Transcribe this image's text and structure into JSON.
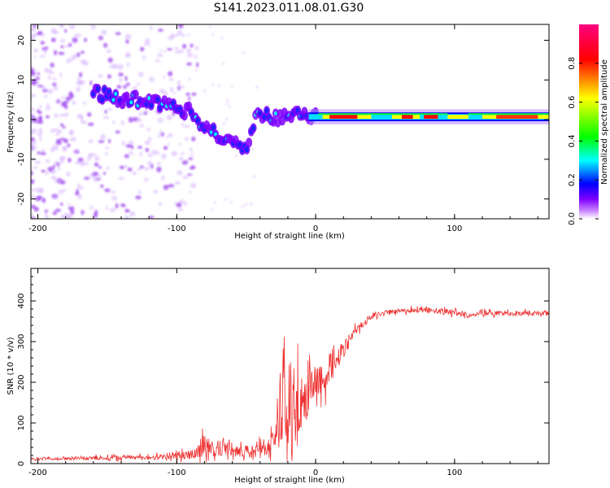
{
  "figure": {
    "title": "S141.2023.011.08.01.G30"
  },
  "chart_data": [
    {
      "type": "heatmap",
      "xlabel": "Height of straight line (km)",
      "ylabel": "Frequency (Hz)",
      "xlim": [
        -205,
        168
      ],
      "ylim": [
        -25,
        24
      ],
      "xticks": [
        -200,
        -100,
        0,
        100
      ],
      "yticks": [
        -20,
        -10,
        0,
        10,
        20
      ],
      "colorbar": {
        "label": "Normalized spectral amplitude",
        "range": [
          0,
          1
        ],
        "ticks": [
          "0.0",
          "0.2",
          "0.4",
          "0.6",
          "0.8"
        ],
        "colormap": "hsv (magenta-blue-cyan-green-yellow-red-magenta)",
        "colors": [
          "#ffffff",
          "#cc88ff",
          "#7f00ff",
          "#0000ff",
          "#00ffff",
          "#00ff00",
          "#ffff00",
          "#ff8000",
          "#ff0000",
          "#ff0080"
        ]
      },
      "ridge": {
        "x": [
          -160,
          -140,
          -120,
          -100,
          -90,
          -80,
          -70,
          -60,
          -50,
          -45,
          -40,
          -30,
          -20,
          -10,
          0,
          20,
          40,
          60,
          80,
          90,
          100,
          120,
          140,
          168
        ],
        "y": [
          7,
          5,
          5,
          3,
          2,
          -2,
          -4,
          -6,
          -8,
          -1,
          2,
          0,
          1,
          1.5,
          1,
          0.5,
          1,
          1.5,
          2,
          0,
          0.5,
          1.5,
          0.5,
          0.5
        ]
      }
    },
    {
      "type": "line",
      "xlabel": "Height of straight line (km)",
      "ylabel": "SNR (10 * v/v)",
      "xlim": [
        -205,
        168
      ],
      "ylim": [
        0,
        480
      ],
      "xticks": [
        -200,
        -100,
        0,
        100
      ],
      "yticks": [
        0,
        100,
        200,
        300,
        400
      ],
      "color": "#ee3333",
      "envelope": {
        "x": [
          -205,
          -180,
          -150,
          -120,
          -100,
          -90,
          -85,
          -80,
          -75,
          -65,
          -55,
          -45,
          -35,
          -30,
          -25,
          -20,
          -15,
          -10,
          -5,
          0,
          10,
          20,
          30,
          40,
          50,
          60,
          80,
          100,
          110,
          120,
          140,
          168
        ],
        "mean": [
          12,
          12,
          15,
          15,
          20,
          22,
          35,
          45,
          35,
          40,
          30,
          30,
          40,
          60,
          140,
          150,
          120,
          160,
          170,
          190,
          230,
          280,
          330,
          360,
          372,
          375,
          378,
          372,
          365,
          370,
          370,
          370
        ],
        "amplitude": [
          5,
          6,
          10,
          10,
          18,
          20,
          40,
          55,
          35,
          35,
          25,
          30,
          50,
          90,
          200,
          190,
          220,
          120,
          110,
          100,
          70,
          40,
          20,
          12,
          10,
          12,
          12,
          15,
          12,
          12,
          12,
          12
        ]
      }
    }
  ]
}
